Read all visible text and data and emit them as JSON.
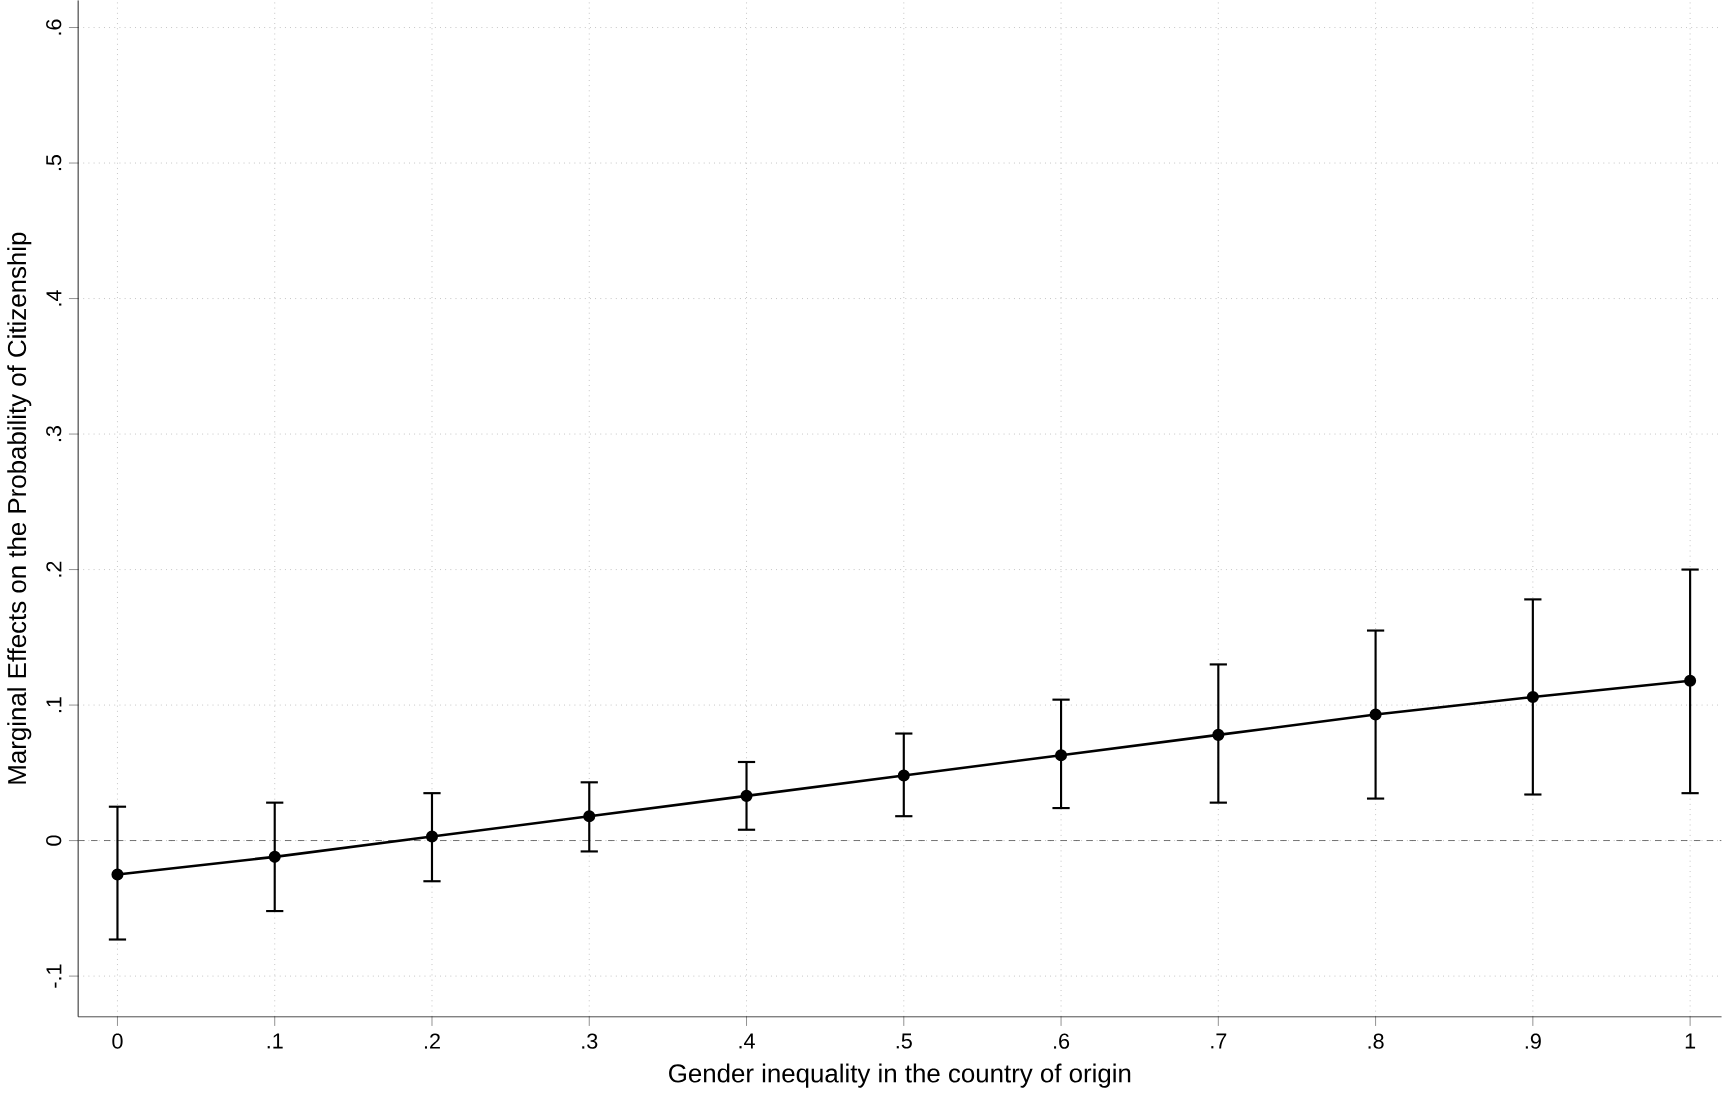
{
  "chart_data": {
    "type": "line",
    "xlabel": "Gender inequality in the country of origin",
    "ylabel": "Marginal Effects on the Probability of Citizenship",
    "x": [
      0,
      0.1,
      0.2,
      0.3,
      0.4,
      0.5,
      0.6,
      0.7,
      0.8,
      0.9,
      1
    ],
    "series": [
      {
        "color": "#000000",
        "values": [
          -0.025,
          -0.012,
          0.003,
          0.018,
          0.033,
          0.048,
          0.063,
          0.078,
          0.093,
          0.106,
          0.118
        ],
        "errors": [
          [
            -0.073,
            0.025
          ],
          [
            -0.052,
            0.028
          ],
          [
            -0.03,
            0.035
          ],
          [
            -0.008,
            0.043
          ],
          [
            0.008,
            0.058
          ],
          [
            0.018,
            0.079
          ],
          [
            0.024,
            0.104
          ],
          [
            0.028,
            0.13
          ],
          [
            0.031,
            0.155
          ],
          [
            0.034,
            0.178
          ],
          [
            0.035,
            0.2
          ]
        ]
      }
    ],
    "xlim": [
      -0.025,
      1.02
    ],
    "ylim": [
      -0.13,
      0.62
    ],
    "xticks": [
      0,
      {
        "value": 0.1,
        "label": ".1"
      },
      {
        "value": 0.2,
        "label": ".2"
      },
      {
        "value": 0.3,
        "label": ".3"
      },
      {
        "value": 0.4,
        "label": ".4"
      },
      {
        "value": 0.5,
        "label": ".5"
      },
      {
        "value": 0.6,
        "label": ".6"
      },
      {
        "value": 0.7,
        "label": ".7"
      },
      {
        "value": 0.8,
        "label": ".8"
      },
      {
        "value": 0.9,
        "label": ".9"
      },
      1
    ],
    "yticks": [
      {
        "value": -0.1,
        "label": "-.1"
      },
      0,
      {
        "value": 0.1,
        "label": ".1"
      },
      {
        "value": 0.2,
        "label": ".2"
      },
      {
        "value": 0.3,
        "label": ".3"
      },
      {
        "value": 0.4,
        "label": ".4"
      },
      {
        "value": 0.5,
        "label": ".5"
      },
      {
        "value": 0.6,
        "label": ".6"
      }
    ],
    "ref_lines": [
      {
        "axis": "y",
        "value": 0,
        "color": "#555555",
        "line_style": "dashed"
      }
    ],
    "grid": true,
    "marker": "circle",
    "line_style": "solid"
  }
}
